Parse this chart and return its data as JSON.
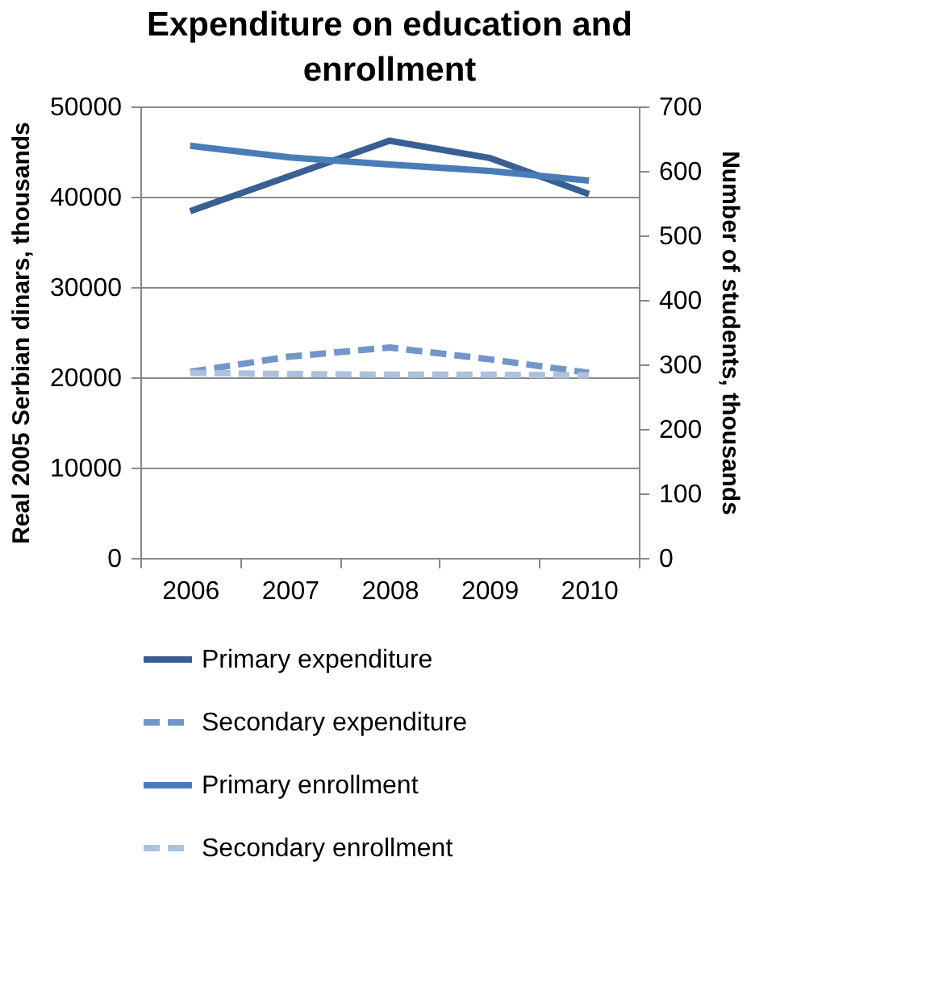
{
  "chart_data": {
    "type": "line",
    "title": "Expenditure on education and enrollment",
    "ylabel": "Real 2005 Serbian dinars, thousands",
    "y2label": "Number of students, thousands",
    "categories": [
      "2006",
      "2007",
      "2008",
      "2009",
      "2010"
    ],
    "series": [
      {
        "name": "Primary expenditure",
        "color": "#3a5f92",
        "line_style": "solid",
        "values": [
          38400,
          42300,
          46200,
          44300,
          40300
        ]
      },
      {
        "name": "Secondary expenditure",
        "color": "#7396c8",
        "line_style": "dashed",
        "values": [
          20600,
          22300,
          23300,
          22000,
          20500
        ]
      },
      {
        "name": "Primary enrollment",
        "color": "#4a7cb8",
        "line_style": "solid",
        "axis": "y2",
        "values": [
          639,
          621,
          610,
          600,
          585
        ]
      },
      {
        "name": "Secondary enrollment",
        "color": "#adc0dc",
        "line_style": "dashed",
        "axis": "y2",
        "values": [
          287,
          285,
          284,
          284,
          283
        ]
      }
    ],
    "ylim": [
      0,
      50000
    ],
    "yticks": [
      0,
      10000,
      20000,
      30000,
      40000,
      50000
    ],
    "y2lim": [
      0,
      700
    ],
    "y2ticks": [
      0,
      100,
      200,
      300,
      400,
      500,
      600,
      700
    ],
    "grid": "y",
    "legend": "bottom",
    "marker": "none"
  }
}
